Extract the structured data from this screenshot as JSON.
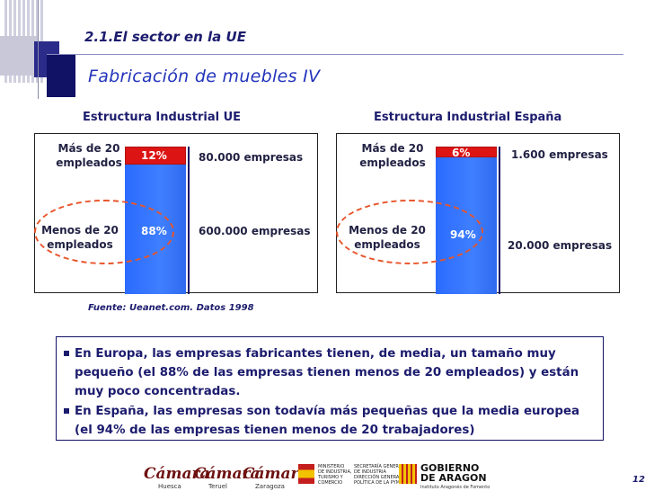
{
  "slide": {
    "subtitle": "2.1.El sector en la UE",
    "title": "Fabricación de muebles IV",
    "page_number": "12"
  },
  "ue": {
    "heading": "Estructura Industrial UE",
    "large_label": "Más de 20 empleados",
    "small_label": "Menos de 20 empleados",
    "large_pct": "12%",
    "small_pct": "88%",
    "large_count": "80.000 empresas",
    "small_count": "600.000 empresas",
    "large_share": 12,
    "small_share": 88
  },
  "es": {
    "heading": "Estructura Industrial España",
    "large_label": "Más de 20 empleados",
    "small_label": "Menos de 20 empleados",
    "large_pct": "6%",
    "small_pct": "94%",
    "large_count": "1.600 empresas",
    "small_count": "20.000 empresas",
    "large_share": 6,
    "small_share": 94
  },
  "source": "Fuente: Ueanet.com. Datos 1998",
  "notes": [
    "En Europa, las empresas fabricantes tienen, de media, un tamaño muy pequeño (el 88% de las empresas tienen menos de 20 empleados) y están muy poco concentradas.",
    "En España, las empresas son todavía más pequeñas que la media europea (el 94% de las empresas tienen menos de 20 trabajadores)"
  ],
  "footer": {
    "logo_camara": "Cámara",
    "logo_huesca": "Huesca",
    "logo_teruel": "Teruel",
    "logo_zaragoza": "Zaragoza",
    "ministerio_lines": [
      "MINISTERIO",
      "DE INDUSTRIA,",
      "TURISMO Y",
      "COMERCIO"
    ],
    "secretaria_lines": [
      "SECRETARÍA GENERAL",
      "DE INDUSTRIA",
      "DIRECCIÓN GENERAL DE",
      "POLÍTICA DE LA PYME"
    ],
    "gobierno_lines": [
      "GOBIERNO",
      "DE ARAGON"
    ],
    "gobierno_sub": "Instituto Aragonés de Fomento"
  },
  "colors": {
    "large_bar": "#dd1414",
    "small_bar": "#3f7fff",
    "heading": "#1c1c6e",
    "ellipse": "#e8552b"
  }
}
